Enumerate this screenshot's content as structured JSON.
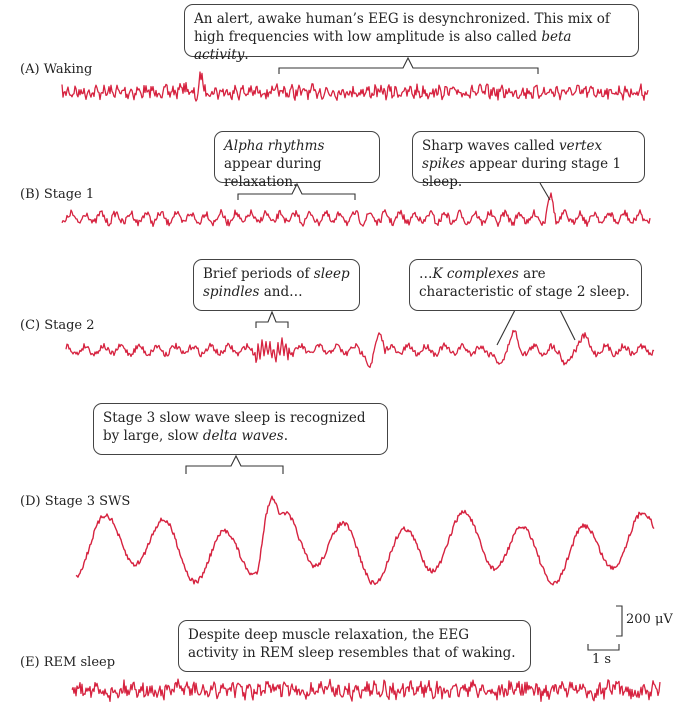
{
  "panels": [
    {
      "id": "A",
      "label": "(A)  Waking"
    },
    {
      "id": "B",
      "label": "(B)  Stage 1"
    },
    {
      "id": "C",
      "label": "(C)  Stage 2"
    },
    {
      "id": "D",
      "label": "(D)  Stage 3 SWS"
    },
    {
      "id": "E",
      "label": "(E)  REM sleep"
    }
  ],
  "callouts": {
    "waking": {
      "pre": "An alert, awake human’s EEG is desynchronized. This mix of high frequencies with low amplitude is also called ",
      "em": "beta activity",
      "post": "."
    },
    "alpha": {
      "pre": "",
      "em": "Alpha rhythms",
      "post": " appear during relaxation."
    },
    "vertex": {
      "pre": "Sharp waves called ",
      "em": "vertex spikes",
      "post": " appear during stage 1 sleep."
    },
    "spindles": {
      "pre": "Brief periods of ",
      "em": "sleep spindles",
      "post": " and…"
    },
    "kcomplex": {
      "pre": "…",
      "em": "K complexes",
      "post": " are characteristic of stage 2 sleep."
    },
    "delta": {
      "pre": "Stage 3 slow wave sleep is recognized by large, slow ",
      "em": "delta waves",
      "post": "."
    },
    "rem": {
      "pre": "Despite deep muscle relaxation, the EEG activity in REM sleep resembles that of waking.",
      "em": "",
      "post": ""
    }
  },
  "scale_bar": {
    "amplitude_label": "200 μV",
    "time_label": "1 s"
  },
  "colors": {
    "trace": "#d6223f",
    "line": "#333333"
  }
}
